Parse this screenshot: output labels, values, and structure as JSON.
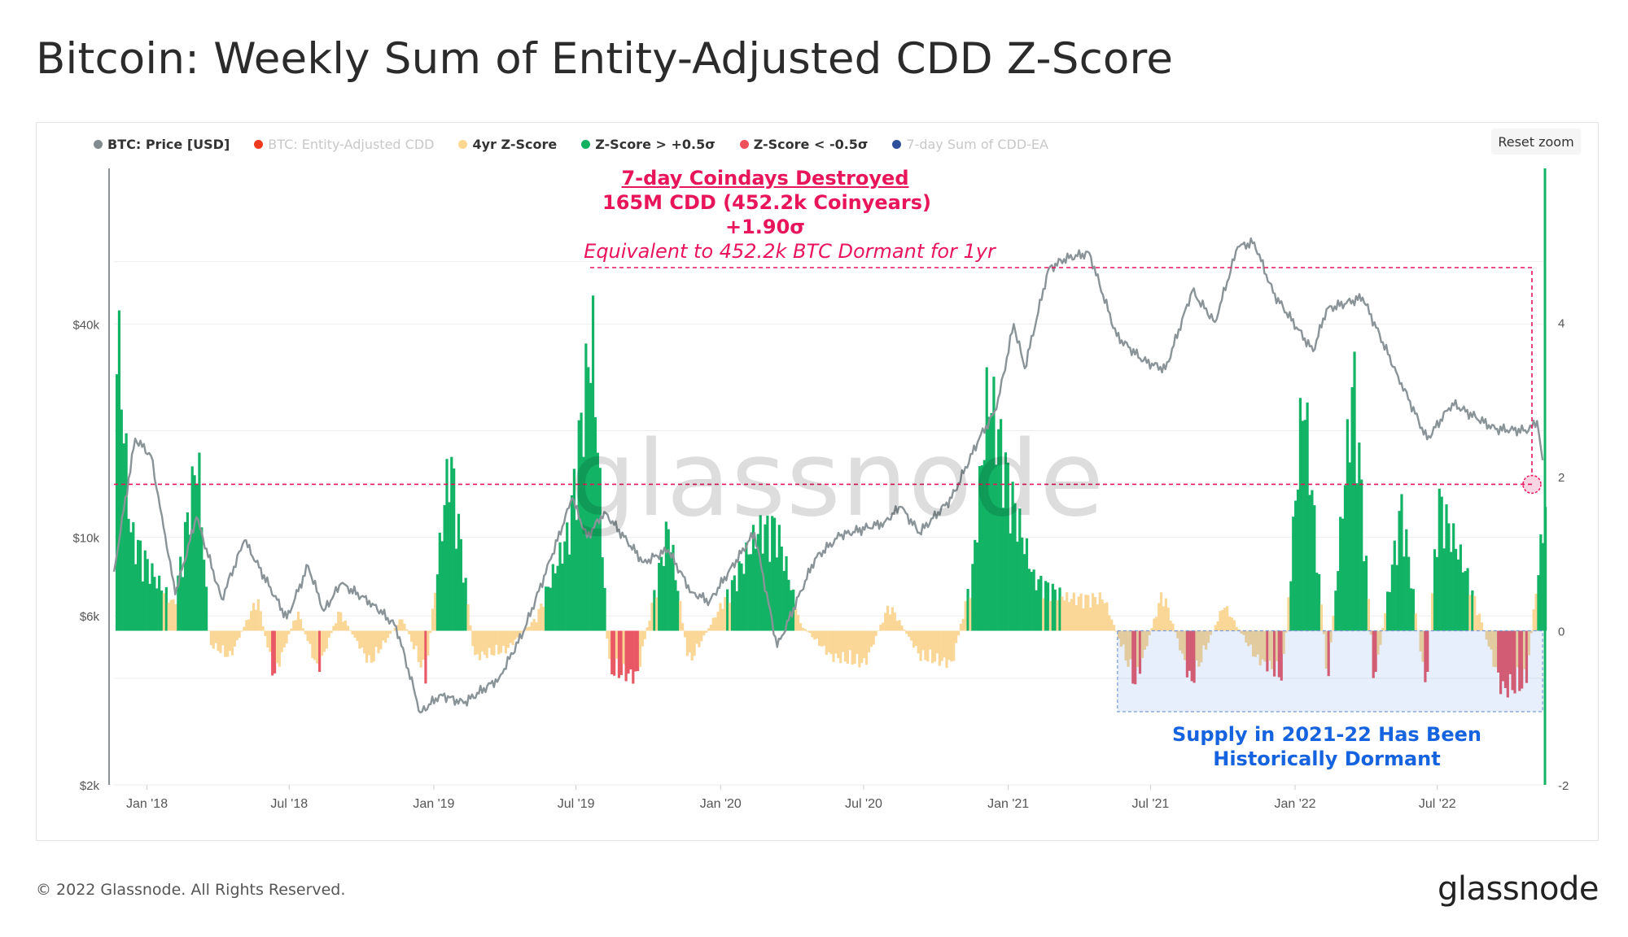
{
  "title": "Bitcoin: Weekly Sum of Entity-Adjusted CDD Z-Score",
  "reset_zoom_label": "Reset zoom",
  "watermark": "glassnode",
  "footer": {
    "copyright": "© 2022 Glassnode. All Rights Reserved.",
    "logo": "glassnode"
  },
  "legend": [
    {
      "label": "BTC: Price [USD]",
      "color": "#808a8f",
      "active": true
    },
    {
      "label": "BTC: Entity-Adjusted CDD",
      "color": "#f03a1e",
      "active": false
    },
    {
      "label": "4yr Z-Score",
      "color": "#fcd790",
      "active": true
    },
    {
      "label": "Z-Score > +0.5σ",
      "color": "#10b060",
      "active": true
    },
    {
      "label": "Z-Score < -0.5σ",
      "color": "#f0525c",
      "active": true
    },
    {
      "label": "7-day Sum of CDD-EA",
      "color": "#2f4f9a",
      "active": false
    }
  ],
  "annotations": {
    "top_title": "7-day Coindays Destroyed",
    "top_line2": "165M CDD (452.2k Coinyears)",
    "top_line3": "+1.90σ",
    "top_line4": "Equivalent to 452.2k BTC Dormant for 1yr",
    "bottom_line1": "Supply in 2021-22 Has Been",
    "bottom_line2": "Historically Dormant"
  },
  "colors": {
    "price": "#8a9498",
    "positive": "#12b365",
    "negative": "#e85865",
    "neutral": "#fad796",
    "annotation": "#e8155b",
    "highlight": "#1663e0"
  },
  "chart_data": {
    "type": "line",
    "x_tick_labels": [
      "Jan '18",
      "Jul '18",
      "Jan '19",
      "Jul '19",
      "Jan '20",
      "Jul '20",
      "Jan '21",
      "Jul '21",
      "Jan '22",
      "Jul '22"
    ],
    "y_left_tick_labels": [
      "$2k",
      "$6k",
      "$10k",
      "$40k"
    ],
    "y_right_tick_labels": [
      "-2",
      "0",
      "2",
      "4"
    ],
    "y_left_scale": "log",
    "y_left_range": [
      2000,
      110000
    ],
    "y_right_range": [
      -2,
      6
    ],
    "x_range": [
      "2017-11-20",
      "2022-11-15"
    ],
    "grid": true,
    "legend_position": "top-left",
    "series": [
      {
        "name": "BTC: Price [USD]",
        "points": [
          [
            "2017-11-20",
            8000
          ],
          [
            "2017-12-17",
            19000
          ],
          [
            "2018-01-06",
            17000
          ],
          [
            "2018-01-20",
            11500
          ],
          [
            "2018-02-06",
            6900
          ],
          [
            "2018-03-05",
            11400
          ],
          [
            "2018-04-06",
            6700
          ],
          [
            "2018-05-05",
            9800
          ],
          [
            "2018-06-28",
            5900
          ],
          [
            "2018-07-25",
            8300
          ],
          [
            "2018-08-14",
            6200
          ],
          [
            "2018-09-05",
            7400
          ],
          [
            "2018-10-15",
            6500
          ],
          [
            "2018-11-14",
            5600
          ],
          [
            "2018-12-15",
            3200
          ],
          [
            "2019-01-10",
            3600
          ],
          [
            "2019-02-08",
            3400
          ],
          [
            "2019-03-25",
            4000
          ],
          [
            "2019-04-25",
            5400
          ],
          [
            "2019-05-30",
            8700
          ],
          [
            "2019-06-26",
            12900
          ],
          [
            "2019-07-15",
            10000
          ],
          [
            "2019-08-06",
            11800
          ],
          [
            "2019-09-25",
            8500
          ],
          [
            "2019-10-26",
            9200
          ],
          [
            "2019-11-25",
            7000
          ],
          [
            "2019-12-18",
            6600
          ],
          [
            "2020-02-13",
            10300
          ],
          [
            "2020-03-13",
            4900
          ],
          [
            "2020-04-30",
            8700
          ],
          [
            "2020-06-01",
            10100
          ],
          [
            "2020-07-27",
            11000
          ],
          [
            "2020-08-17",
            12200
          ],
          [
            "2020-09-10",
            10300
          ],
          [
            "2020-10-21",
            12900
          ],
          [
            "2020-11-25",
            19000
          ],
          [
            "2020-12-17",
            23000
          ],
          [
            "2021-01-08",
            40000
          ],
          [
            "2021-01-22",
            30000
          ],
          [
            "2021-02-21",
            57000
          ],
          [
            "2021-03-13",
            61000
          ],
          [
            "2021-04-14",
            63500
          ],
          [
            "2021-05-19",
            37000
          ],
          [
            "2021-06-22",
            31500
          ],
          [
            "2021-07-20",
            29800
          ],
          [
            "2021-08-23",
            49500
          ],
          [
            "2021-09-21",
            40500
          ],
          [
            "2021-10-20",
            66000
          ],
          [
            "2021-11-10",
            68000
          ],
          [
            "2021-12-04",
            49000
          ],
          [
            "2022-01-24",
            33500
          ],
          [
            "2022-02-10",
            44000
          ],
          [
            "2022-03-28",
            47500
          ],
          [
            "2022-05-12",
            28500
          ],
          [
            "2022-06-18",
            18900
          ],
          [
            "2022-07-20",
            23900
          ],
          [
            "2022-09-13",
            20200
          ],
          [
            "2022-10-25",
            20000
          ],
          [
            "2022-11-05",
            21300
          ],
          [
            "2022-11-12",
            16500
          ]
        ]
      },
      {
        "name": "4yr Z-Score",
        "points": [
          [
            "2017-11-22",
            4.7
          ],
          [
            "2017-12-10",
            1.5
          ],
          [
            "2018-01-10",
            0.8
          ],
          [
            "2018-02-03",
            0.4
          ],
          [
            "2018-03-05",
            2.7
          ],
          [
            "2018-03-20",
            -0.2
          ],
          [
            "2018-04-15",
            -0.4
          ],
          [
            "2018-05-20",
            0.5
          ],
          [
            "2018-06-10",
            -0.7
          ],
          [
            "2018-07-10",
            0.3
          ],
          [
            "2018-08-05",
            -0.6
          ],
          [
            "2018-09-01",
            0.3
          ],
          [
            "2018-10-10",
            -0.5
          ],
          [
            "2018-11-20",
            0.2
          ],
          [
            "2018-12-20",
            -0.7
          ],
          [
            "2019-01-20",
            2.7
          ],
          [
            "2019-02-20",
            -0.4
          ],
          [
            "2019-04-01",
            -0.3
          ],
          [
            "2019-05-10",
            0.2
          ],
          [
            "2019-06-20",
            1.5
          ],
          [
            "2019-07-20",
            4.6
          ],
          [
            "2019-08-10",
            -0.6
          ],
          [
            "2019-09-15",
            -0.7
          ],
          [
            "2019-10-25",
            1.6
          ],
          [
            "2019-11-20",
            -0.5
          ],
          [
            "2020-01-10",
            0.6
          ],
          [
            "2020-02-15",
            1.5
          ],
          [
            "2020-03-10",
            1.6
          ],
          [
            "2020-04-10",
            0.1
          ],
          [
            "2020-05-20",
            -0.4
          ],
          [
            "2020-07-01",
            -0.5
          ],
          [
            "2020-08-01",
            0.4
          ],
          [
            "2020-09-10",
            -0.4
          ],
          [
            "2020-10-20",
            -0.5
          ],
          [
            "2020-11-15",
            0.9
          ],
          [
            "2020-12-05",
            3.7
          ],
          [
            "2021-01-05",
            2.0
          ],
          [
            "2021-02-01",
            0.8
          ],
          [
            "2021-03-15",
            0.5
          ],
          [
            "2021-05-01",
            0.5
          ],
          [
            "2021-06-10",
            -0.8
          ],
          [
            "2021-07-15",
            0.6
          ],
          [
            "2021-08-20",
            -0.8
          ],
          [
            "2021-10-01",
            0.4
          ],
          [
            "2021-11-10",
            -0.4
          ],
          [
            "2021-12-15",
            -0.7
          ],
          [
            "2022-01-10",
            3.7
          ],
          [
            "2022-02-10",
            -0.8
          ],
          [
            "2022-03-15",
            3.9
          ],
          [
            "2022-04-10",
            -0.8
          ],
          [
            "2022-05-15",
            1.9
          ],
          [
            "2022-06-15",
            -0.9
          ],
          [
            "2022-07-01",
            2.0
          ],
          [
            "2022-08-05",
            0.9
          ],
          [
            "2022-09-20",
            -0.9
          ],
          [
            "2022-10-20",
            -0.8
          ],
          [
            "2022-11-14",
            1.9
          ]
        ]
      }
    ]
  }
}
